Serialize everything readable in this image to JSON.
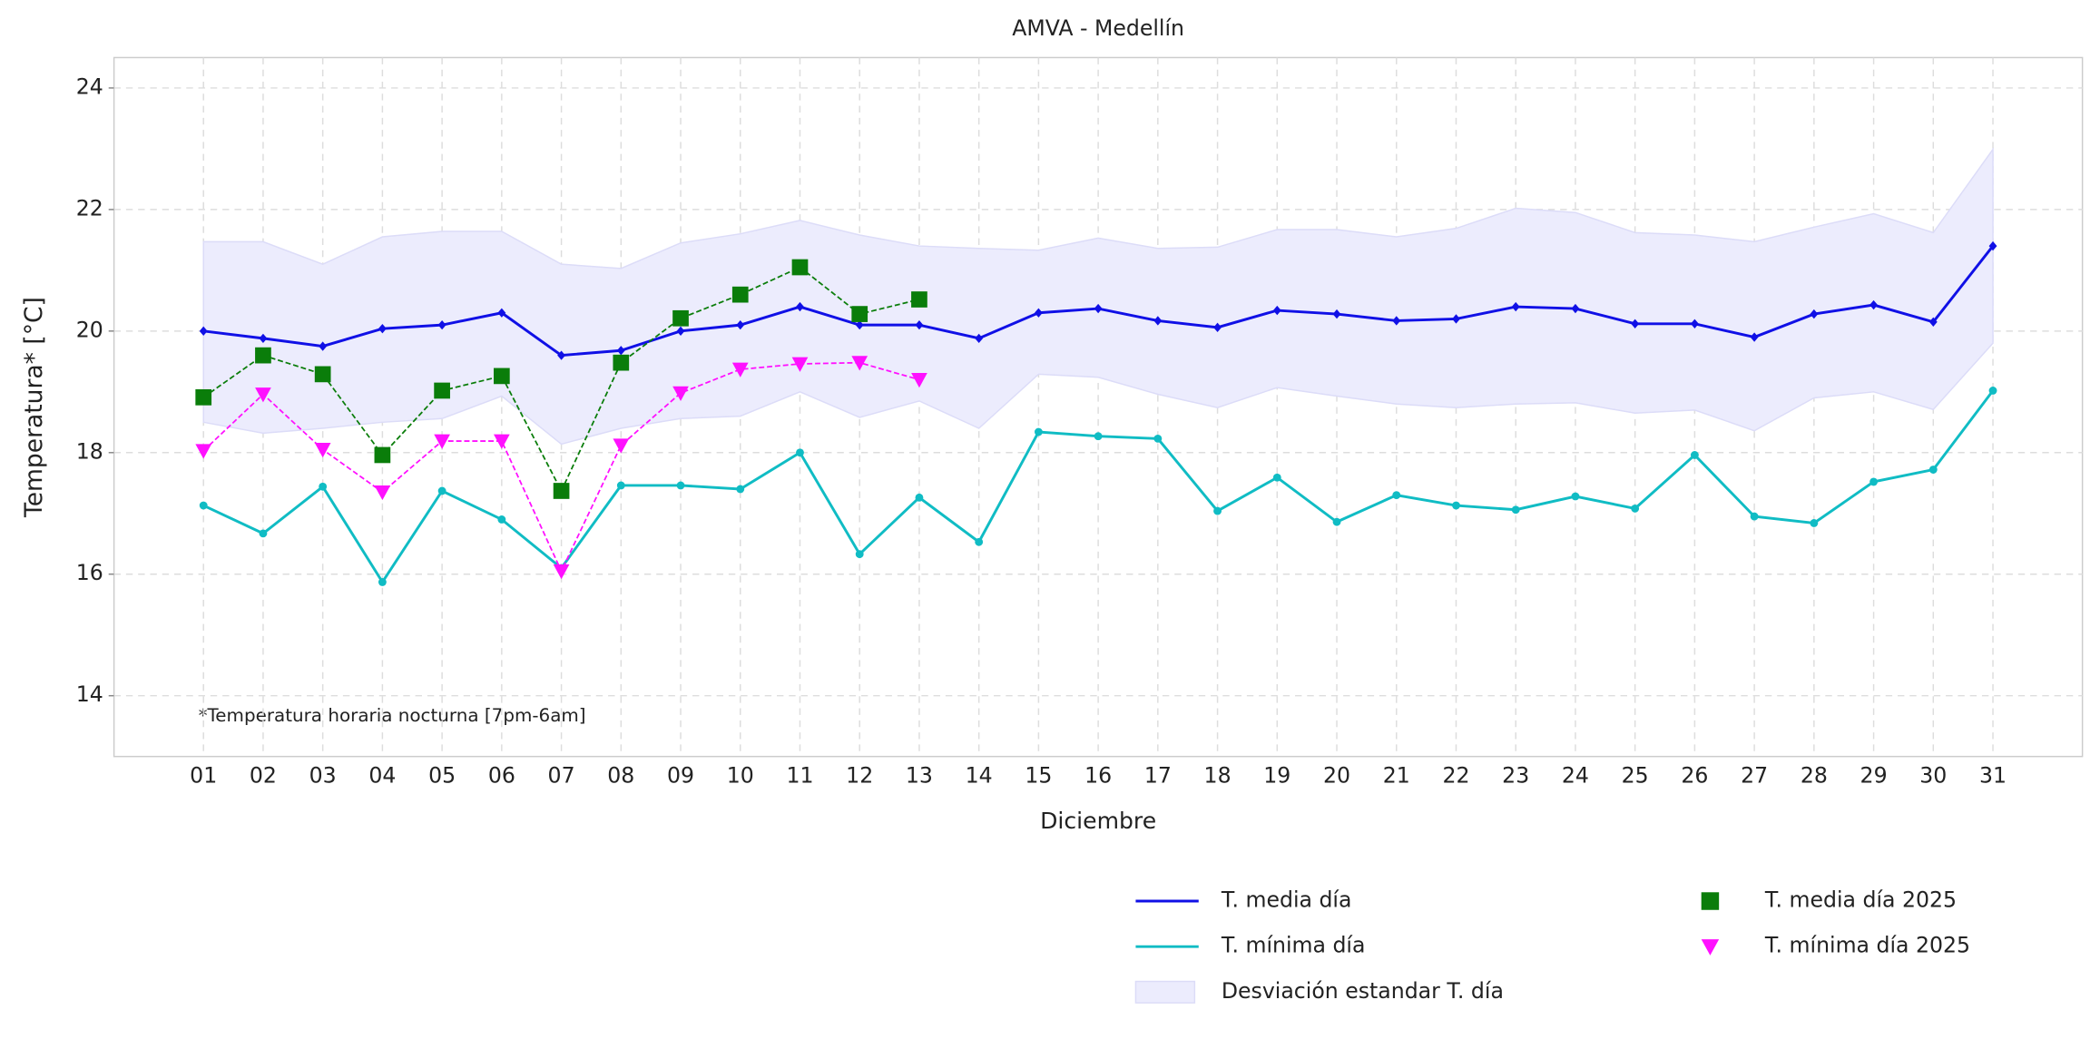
{
  "chart_data": {
    "type": "line",
    "title": "AMVA - Medellín",
    "xlabel": "Diciembre",
    "ylabel": "Temperatura* [°C]",
    "annotation": "*Temperatura horaria nocturna [7pm-6am]",
    "categories": [
      "01",
      "02",
      "03",
      "04",
      "05",
      "06",
      "07",
      "08",
      "09",
      "10",
      "11",
      "12",
      "13",
      "14",
      "15",
      "16",
      "17",
      "18",
      "19",
      "20",
      "21",
      "22",
      "23",
      "24",
      "25",
      "26",
      "27",
      "28",
      "29",
      "30",
      "31"
    ],
    "ylim": [
      13,
      24.5
    ],
    "yticks": [
      14,
      16,
      18,
      20,
      22,
      24
    ],
    "grid": true,
    "band": {
      "name": "Desviación estandar T. día",
      "color": "#ececfd",
      "upper": [
        21.47,
        21.47,
        21.1,
        21.55,
        21.64,
        21.64,
        21.1,
        21.03,
        21.45,
        21.6,
        21.82,
        21.58,
        21.4,
        21.36,
        21.33,
        21.53,
        21.36,
        21.38,
        21.67,
        21.67,
        21.55,
        21.69,
        22.02,
        21.95,
        21.62,
        21.58,
        21.47,
        21.71,
        21.93,
        21.62,
        22.99
      ],
      "lower": [
        18.5,
        18.32,
        18.4,
        18.5,
        18.56,
        18.93,
        18.14,
        18.4,
        18.56,
        18.6,
        19.0,
        18.58,
        18.85,
        18.4,
        19.29,
        19.24,
        18.96,
        18.74,
        19.07,
        18.93,
        18.8,
        18.74,
        18.8,
        18.82,
        18.65,
        18.7,
        18.36,
        18.9,
        19.0,
        18.71,
        19.8
      ]
    },
    "series": [
      {
        "name": "T. media día",
        "color": "#1010e6",
        "marker": "diamond",
        "dashed": false,
        "values": [
          20.0,
          19.88,
          19.75,
          20.04,
          20.1,
          20.3,
          19.6,
          19.68,
          20.0,
          20.1,
          20.4,
          20.1,
          20.1,
          19.88,
          20.3,
          20.37,
          20.17,
          20.06,
          20.34,
          20.28,
          20.17,
          20.2,
          20.4,
          20.37,
          20.12,
          20.12,
          19.9,
          20.28,
          20.43,
          20.15,
          21.4
        ]
      },
      {
        "name": "T. mínima día",
        "color": "#10bcc4",
        "marker": "circle",
        "dashed": false,
        "values": [
          17.13,
          16.67,
          17.44,
          15.87,
          17.37,
          16.9,
          16.1,
          17.46,
          17.46,
          17.4,
          18.0,
          16.33,
          17.26,
          16.53,
          18.34,
          18.27,
          18.23,
          17.04,
          17.59,
          16.86,
          17.3,
          17.13,
          17.06,
          17.28,
          17.08,
          17.96,
          16.95,
          16.84,
          17.52,
          17.72,
          19.02
        ]
      },
      {
        "name": "T. media día 2025",
        "color": "#0a7d0a",
        "marker": "square",
        "dashed": true,
        "values": [
          18.91,
          19.6,
          19.29,
          17.96,
          19.02,
          19.26,
          17.37,
          19.48,
          20.21,
          20.6,
          21.05,
          20.28,
          20.52,
          null,
          null,
          null,
          null,
          null,
          null,
          null,
          null,
          null,
          null,
          null,
          null,
          null,
          null,
          null,
          null,
          null,
          null
        ]
      },
      {
        "name": "T. mínima día 2025",
        "color": "#ff10ff",
        "marker": "triangle",
        "dashed": true,
        "values": [
          18.03,
          18.96,
          18.05,
          17.35,
          18.19,
          18.19,
          16.05,
          18.12,
          18.98,
          19.37,
          19.46,
          19.48,
          19.2,
          null,
          null,
          null,
          null,
          null,
          null,
          null,
          null,
          null,
          null,
          null,
          null,
          null,
          null,
          null,
          null,
          null,
          null
        ]
      }
    ]
  }
}
